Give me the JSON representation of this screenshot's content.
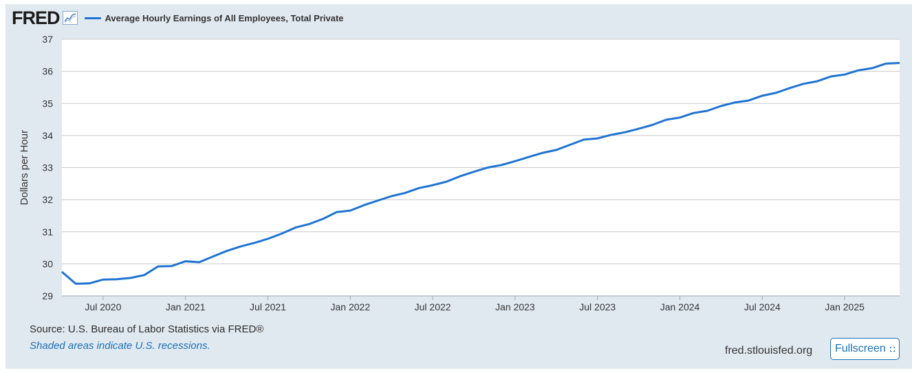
{
  "header": {
    "logo_text": "FRED",
    "logo_icon": "line-chart-icon",
    "series_legend": "Average Hourly Earnings of All Employees, Total Private"
  },
  "chart_data": {
    "type": "line",
    "title": "",
    "ylabel": "Dollars per Hour",
    "xlabel": "",
    "ylim": [
      29,
      37
    ],
    "yticks": [
      29,
      30,
      31,
      32,
      33,
      34,
      35,
      36,
      37
    ],
    "xticks": [
      {
        "date": "2020-07",
        "label": "Jul 2020"
      },
      {
        "date": "2021-01",
        "label": "Jan 2021"
      },
      {
        "date": "2021-07",
        "label": "Jul 2021"
      },
      {
        "date": "2022-01",
        "label": "Jan 2022"
      },
      {
        "date": "2022-07",
        "label": "Jul 2022"
      },
      {
        "date": "2023-01",
        "label": "Jan 2023"
      },
      {
        "date": "2023-07",
        "label": "Jul 2023"
      },
      {
        "date": "2024-01",
        "label": "Jan 2024"
      },
      {
        "date": "2024-07",
        "label": "Jul 2024"
      },
      {
        "date": "2025-01",
        "label": "Jan 2025"
      }
    ],
    "xlim": [
      "2020-04",
      "2025-05"
    ],
    "grid": true,
    "series": [
      {
        "name": "Average Hourly Earnings of All Employees, Total Private",
        "color": "#1e73d2",
        "x": [
          "2020-04",
          "2020-05",
          "2020-06",
          "2020-07",
          "2020-08",
          "2020-09",
          "2020-10",
          "2020-11",
          "2020-12",
          "2021-01",
          "2021-02",
          "2021-03",
          "2021-04",
          "2021-05",
          "2021-06",
          "2021-07",
          "2021-08",
          "2021-09",
          "2021-10",
          "2021-11",
          "2021-12",
          "2022-01",
          "2022-02",
          "2022-03",
          "2022-04",
          "2022-05",
          "2022-06",
          "2022-07",
          "2022-08",
          "2022-09",
          "2022-10",
          "2022-11",
          "2022-12",
          "2023-01",
          "2023-02",
          "2023-03",
          "2023-04",
          "2023-05",
          "2023-06",
          "2023-07",
          "2023-08",
          "2023-09",
          "2023-10",
          "2023-11",
          "2023-12",
          "2024-01",
          "2024-02",
          "2024-03",
          "2024-04",
          "2024-05",
          "2024-06",
          "2024-07",
          "2024-08",
          "2024-09",
          "2024-10",
          "2024-11",
          "2024-12",
          "2025-01",
          "2025-02",
          "2025-03",
          "2025-04",
          "2025-05"
        ],
        "y": [
          29.75,
          29.38,
          29.39,
          29.51,
          29.52,
          29.56,
          29.65,
          29.92,
          29.93,
          30.08,
          30.05,
          30.23,
          30.4,
          30.54,
          30.65,
          30.78,
          30.94,
          31.13,
          31.24,
          31.4,
          31.61,
          31.66,
          31.83,
          31.97,
          32.11,
          32.21,
          32.36,
          32.45,
          32.56,
          32.73,
          32.87,
          33.0,
          33.08,
          33.2,
          33.33,
          33.46,
          33.55,
          33.71,
          33.87,
          33.91,
          34.02,
          34.1,
          34.21,
          34.33,
          34.49,
          34.56,
          34.7,
          34.77,
          34.92,
          35.03,
          35.09,
          35.24,
          35.33,
          35.48,
          35.61,
          35.69,
          35.84,
          35.9,
          36.03,
          36.1,
          36.24,
          36.26
        ]
      }
    ]
  },
  "footer": {
    "source": "Source: U.S. Bureau of Labor Statistics via FRED®",
    "note": "Shaded areas indicate U.S. recessions.",
    "site": "fred.stlouisfed.org",
    "fullscreen_label": "Fullscreen",
    "fullscreen_icon": "expand-icon"
  }
}
